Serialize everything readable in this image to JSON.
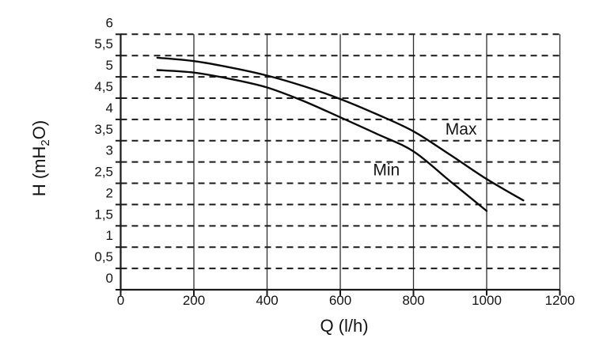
{
  "figure": {
    "background": "#ffffff"
  },
  "chart_data": {
    "type": "line",
    "title": "",
    "xlabel": "Q (l/h)",
    "ylabel": "H (mH2O)",
    "ylabel_parts": {
      "pre": "H (mH",
      "sub": "2",
      "post": "O)"
    },
    "xlim": [
      0,
      1200
    ],
    "ylim": [
      0,
      6
    ],
    "x_ticks": {
      "values": [
        0,
        200,
        400,
        600,
        800,
        1000,
        1200
      ],
      "labels": [
        "0",
        "200",
        "400",
        "600",
        "800",
        "1000",
        "1200"
      ]
    },
    "y_ticks": {
      "values": [
        0,
        0.5,
        1,
        1.5,
        2,
        2.5,
        3,
        3.5,
        4,
        4.5,
        5,
        5.5,
        6
      ],
      "labels": [
        "0",
        "0,5",
        "1",
        "1,5",
        "2",
        "2,5",
        "3",
        "3,5",
        "4",
        "4,5",
        "5",
        "5,5",
        "6"
      ]
    },
    "grid": {
      "horizontal_style": "dashed",
      "vertical_style": "solid"
    },
    "legend_position": "inline-curve-labels",
    "colors": {
      "curve": "#0a0a0a",
      "grid_dashed": "#1a1a1a",
      "grid_vertical": "#2e2e2e",
      "axis": "#1a1a1a",
      "text": "#141414"
    },
    "series": [
      {
        "name": "Max",
        "label_at": {
          "x": 930,
          "y": 3.77
        },
        "points": [
          [
            100,
            5.45
          ],
          [
            200,
            5.37
          ],
          [
            300,
            5.22
          ],
          [
            400,
            5.03
          ],
          [
            500,
            4.78
          ],
          [
            600,
            4.48
          ],
          [
            700,
            4.12
          ],
          [
            800,
            3.72
          ],
          [
            900,
            3.17
          ],
          [
            1000,
            2.6
          ],
          [
            1100,
            2.1
          ]
        ]
      },
      {
        "name": "Min",
        "label_at": {
          "x": 726,
          "y": 2.82
        },
        "points": [
          [
            100,
            5.16
          ],
          [
            200,
            5.1
          ],
          [
            300,
            4.95
          ],
          [
            400,
            4.75
          ],
          [
            500,
            4.43
          ],
          [
            600,
            4.05
          ],
          [
            700,
            3.66
          ],
          [
            800,
            3.25
          ],
          [
            900,
            2.55
          ],
          [
            1000,
            1.85
          ]
        ]
      }
    ]
  }
}
